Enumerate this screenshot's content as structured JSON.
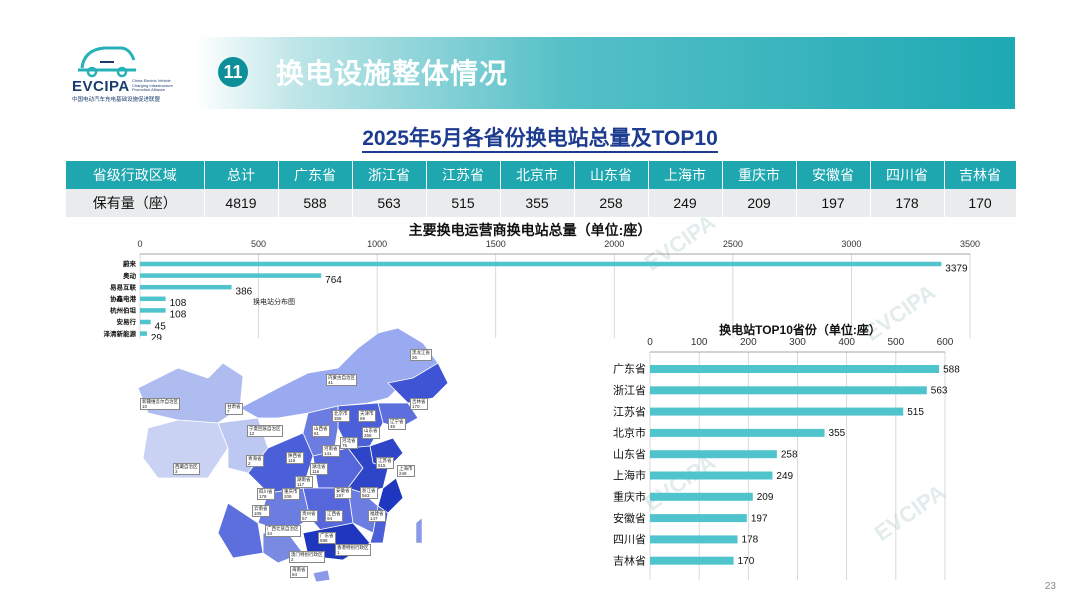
{
  "header": {
    "logo_text": "EVCIPA",
    "logo_sub": "中国电动汽车充电基础设施促进联盟",
    "logo_en": "China Electric Vehicle Charging Infrastructure Promotion Alliance",
    "section_number": "11",
    "section_title": "换电设施整体情况"
  },
  "subtitle": "2025年5月各省份换电站总量及TOP10",
  "summary_table": {
    "header": [
      "省级行政区域",
      "总计",
      "广东省",
      "浙江省",
      "江苏省",
      "北京市",
      "山东省",
      "上海市",
      "重庆市",
      "安徽省",
      "四川省",
      "吉林省"
    ],
    "row": [
      "保有量（座）",
      "4819",
      "588",
      "563",
      "515",
      "355",
      "258",
      "249",
      "209",
      "197",
      "178",
      "170"
    ]
  },
  "map": {
    "caption": "换电站分布图",
    "labels": [
      {
        "name": "黑龙江省",
        "value": "26"
      },
      {
        "name": "吉林省",
        "value": "170"
      },
      {
        "name": "内蒙古自治区",
        "value": "41"
      },
      {
        "name": "新疆维吾尔自治区",
        "value": "10"
      },
      {
        "name": "甘肃省",
        "value": "7"
      },
      {
        "name": "宁夏回族自治区",
        "value": "13"
      },
      {
        "name": "北京市",
        "value": "355"
      },
      {
        "name": "天津市",
        "value": "69"
      },
      {
        "name": "河北省",
        "value": "75"
      },
      {
        "name": "辽宁省",
        "value": "48"
      },
      {
        "name": "山西省",
        "value": "61"
      },
      {
        "name": "山东省",
        "value": "258"
      },
      {
        "name": "河南省",
        "value": "141"
      },
      {
        "name": "陕西省",
        "value": "119"
      },
      {
        "name": "青海省",
        "value": "2"
      },
      {
        "name": "西藏自治区",
        "value": "3"
      },
      {
        "name": "江苏省",
        "value": "515"
      },
      {
        "name": "上海市",
        "value": "249"
      },
      {
        "name": "湖北省",
        "value": "116"
      },
      {
        "name": "安徽省",
        "value": "197"
      },
      {
        "name": "四川省",
        "value": "178"
      },
      {
        "name": "重庆市",
        "value": "209"
      },
      {
        "name": "湖南省",
        "value": "117"
      },
      {
        "name": "浙江省",
        "value": "563"
      },
      {
        "name": "江西省",
        "value": "94"
      },
      {
        "name": "贵州省",
        "value": "57"
      },
      {
        "name": "云南省",
        "value": "105"
      },
      {
        "name": "福建省",
        "value": "147"
      },
      {
        "name": "广西壮族自治区",
        "value": "34"
      },
      {
        "name": "广东省",
        "value": "588"
      },
      {
        "name": "香港特别行政区",
        "value": "1"
      },
      {
        "name": "澳门特别行政区",
        "value": "2"
      },
      {
        "name": "海南省",
        "value": "64"
      }
    ]
  },
  "chart_data": [
    {
      "type": "bar",
      "orientation": "horizontal",
      "title": "主要换电运营商换电站总量（单位:座）",
      "categories": [
        "蔚来",
        "奥动",
        "易易互联",
        "协鑫电港",
        "杭州伯坦",
        "安易行",
        "泽清新能源"
      ],
      "values": [
        3379,
        764,
        386,
        108,
        108,
        45,
        29
      ],
      "xlim": [
        0,
        3500
      ],
      "xticks": [
        0,
        500,
        1000,
        1500,
        2000,
        2500,
        3000,
        3500
      ],
      "axis_position": "top",
      "grid": true,
      "color": "#4fc4cc"
    },
    {
      "type": "bar",
      "orientation": "horizontal",
      "title": "换电站TOP10省份（单位:座）",
      "categories": [
        "广东省",
        "浙江省",
        "江苏省",
        "北京市",
        "山东省",
        "上海市",
        "重庆市",
        "安徽省",
        "四川省",
        "吉林省"
      ],
      "values": [
        588,
        563,
        515,
        355,
        258,
        249,
        209,
        197,
        178,
        170
      ],
      "xlim": [
        0,
        600
      ],
      "xticks": [
        0,
        100,
        200,
        300,
        400,
        500,
        600
      ],
      "axis_position": "top",
      "grid": true,
      "color": "#4fc4cc"
    }
  ],
  "page_number": "23",
  "colors": {
    "accent": "#1fa7b0",
    "title_blue": "#1d3b8f",
    "bar": "#4fc4cc",
    "map_dark": "#2f45c8",
    "map_light": "#c9d2f3"
  }
}
